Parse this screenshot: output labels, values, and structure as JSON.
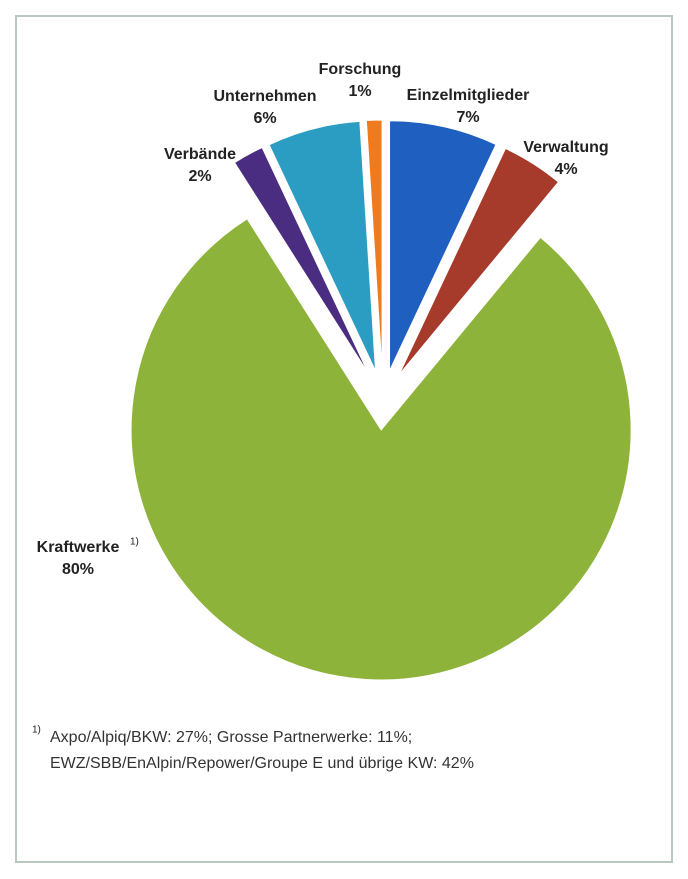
{
  "chart_data": {
    "type": "pie",
    "categories": [
      "Einzelmitglieder",
      "Verwaltung",
      "Kraftwerke",
      "Verbände",
      "Unternehmen",
      "Forschung"
    ],
    "values": [
      7,
      4,
      80,
      2,
      6,
      1
    ],
    "value_labels": [
      "7%",
      "4%",
      "80%",
      "2%",
      "6%",
      "1%"
    ],
    "colors": [
      "#1f5fc0",
      "#a63a2b",
      "#8db33b",
      "#4a2d80",
      "#2b9cc2",
      "#f07a1e"
    ],
    "label_markers": {
      "2": "1)"
    },
    "footnote": {
      "marker": "1)",
      "lines": [
        "Axpo/Alpiq/BKW: 27%; Grosse Partnerwerke: 11%;",
        "EWZ/SBB/EnAlpin/Repower/Groupe E und übrige KW: 42%"
      ]
    }
  }
}
